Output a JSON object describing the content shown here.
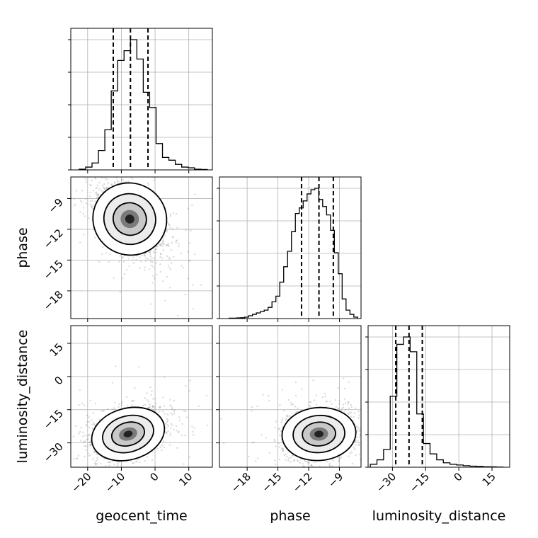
{
  "chart_data": {
    "type": "corner",
    "parameters": [
      "geocent_time",
      "phase",
      "luminosity_distance"
    ],
    "axis_labels": {
      "geocent_time": "geocent_time",
      "phase": "phase",
      "luminosity_distance": "luminosity_distance"
    },
    "ranges": {
      "geocent_time": [
        -25,
        17
      ],
      "phase": [
        -20.7,
        -6.9
      ],
      "luminosity_distance": [
        -41,
        23
      ]
    },
    "ticks": {
      "geocent_time": [
        -20,
        -10,
        0,
        10
      ],
      "phase": [
        -18,
        -15,
        -12,
        -9
      ],
      "luminosity_distance": [
        -30,
        -15,
        0,
        15
      ]
    },
    "tick_labels": {
      "geocent_time": [
        "−20",
        "−10",
        "0",
        "10"
      ],
      "phase": [
        "−18",
        "−15",
        "−12",
        "−9"
      ],
      "luminosity_distance": [
        "−30",
        "−15",
        "0",
        "15"
      ]
    },
    "grid": true,
    "histogram_color": "#000000",
    "quantile_line_color": "#000000",
    "scatter_color": "#7f7f7f",
    "quantiles": {
      "geocent_time": [
        -12.4,
        -7.3,
        -2.1
      ],
      "phase": [
        -12.7,
        -11.0,
        -9.6
      ],
      "luminosity_distance": [
        -28.5,
        -22.5,
        -16.5
      ]
    },
    "histograms": {
      "geocent_time": {
        "bin_edges": [
          -22.5,
          -20.6,
          -18.7,
          -16.8,
          -14.9,
          -13.0,
          -11.1,
          -9.2,
          -7.3,
          -5.4,
          -3.5,
          -1.6,
          0.3,
          2.2,
          4.1,
          6.0,
          7.9,
          9.8,
          11.7,
          13.6,
          15.5
        ],
        "counts": [
          0.5,
          2,
          5,
          14,
          29,
          57,
          79,
          86,
          94,
          80,
          56,
          45,
          19,
          9,
          7,
          4,
          2,
          1.5,
          0.5,
          0.3
        ]
      },
      "phase": {
        "bin_edges": [
          -19.76,
          -19.38,
          -19.0,
          -18.62,
          -18.24,
          -17.86,
          -17.48,
          -17.1,
          -16.72,
          -16.34,
          -15.96,
          -15.58,
          -15.2,
          -14.82,
          -14.44,
          -14.06,
          -13.68,
          -13.3,
          -12.92,
          -12.54,
          -12.16,
          -11.78,
          -11.4,
          -11.02,
          -10.64,
          -10.26,
          -9.88,
          -9.5,
          -9.12,
          -8.74,
          -8.36,
          -7.98,
          -7.6,
          -7.22
        ],
        "counts": [
          0.3,
          0.3,
          0.5,
          0.6,
          1,
          2,
          3,
          4,
          5,
          6,
          8,
          12,
          16,
          26,
          37,
          48,
          62,
          75,
          79,
          84,
          89,
          92,
          93,
          85,
          80,
          74,
          63,
          47,
          32,
          14,
          6,
          3,
          1
        ]
      },
      "luminosity_distance": {
        "bin_edges": [
          -40,
          -37,
          -34,
          -31,
          -28,
          -25,
          -22,
          -19,
          -16,
          -13,
          -10,
          -7,
          -4,
          -1,
          2,
          5,
          8,
          11,
          14,
          17,
          20
        ],
        "counts": [
          2,
          5,
          12,
          48,
          83,
          88,
          78,
          36,
          16,
          9,
          5,
          3,
          2,
          1.5,
          1,
          0.7,
          0.5,
          0.3,
          0.2,
          0.1
        ]
      }
    },
    "scatter_center": {
      "phase_vs_geocent_time": [
        -7.5,
        -11.0
      ],
      "luminosity_distance_vs_geocent_time": [
        -8.0,
        -26.0
      ],
      "luminosity_distance_vs_phase": [
        -11.0,
        -26.0
      ]
    }
  }
}
